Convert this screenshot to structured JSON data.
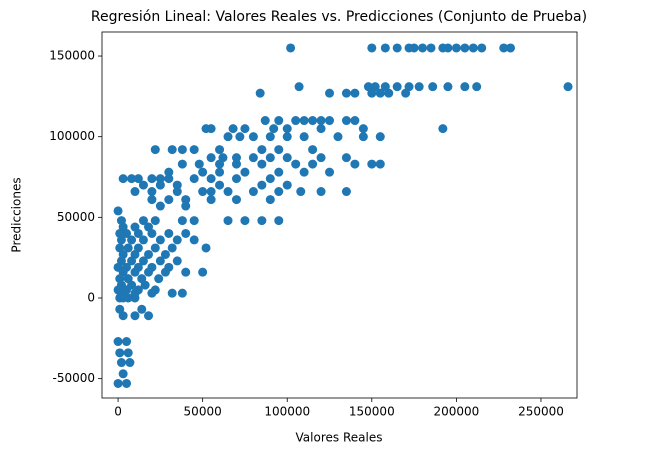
{
  "chart_data": {
    "type": "scatter",
    "title": "Regresión Lineal: Valores Reales vs. Predicciones (Conjunto de Prueba)",
    "xlabel": "Valores Reales",
    "ylabel": "Predicciones",
    "color": "#1f77b4",
    "xlim": [
      -9500,
      271300
    ],
    "ylim": [
      -62000,
      164900
    ],
    "xticks": [
      0,
      50000,
      100000,
      150000,
      200000,
      250000
    ],
    "yticks": [
      -50000,
      0,
      50000,
      100000,
      150000
    ],
    "grid": false,
    "x": [
      102000,
      150000,
      158000,
      165000,
      172000,
      175000,
      180000,
      185000,
      192000,
      195000,
      200000,
      205000,
      210000,
      215000,
      228000,
      232000,
      107000,
      148000,
      152000,
      158000,
      165000,
      172000,
      178000,
      186000,
      195000,
      205000,
      212000,
      266000,
      84000,
      125000,
      135000,
      140000,
      150000,
      155000,
      160000,
      170000,
      87000,
      95000,
      105000,
      110000,
      115000,
      120000,
      125000,
      135000,
      140000,
      52000,
      55000,
      68000,
      75000,
      92000,
      100000,
      120000,
      145000,
      192000,
      65000,
      72000,
      80000,
      90000,
      100000,
      110000,
      130000,
      145000,
      155000,
      22000,
      32000,
      38000,
      45000,
      60000,
      85000,
      95000,
      115000,
      55000,
      62000,
      70000,
      80000,
      90000,
      100000,
      120000,
      135000,
      38000,
      48000,
      60000,
      70000,
      85000,
      105000,
      115000,
      140000,
      150000,
      155000,
      30000,
      50000,
      60000,
      75000,
      95000,
      110000,
      125000,
      3000,
      8000,
      12000,
      20000,
      25000,
      30000,
      45000,
      55000,
      70000,
      90000,
      15000,
      25000,
      35000,
      60000,
      85000,
      100000,
      10000,
      20000,
      35000,
      50000,
      55000,
      65000,
      80000,
      95000,
      108000,
      120000,
      135000,
      20000,
      30000,
      40000,
      55000,
      70000,
      90000,
      25000,
      40000,
      0,
      2000,
      15000,
      22000,
      38000,
      45000,
      65000,
      75000,
      85000,
      95000,
      3000,
      10000,
      18000,
      1000,
      5000,
      12000,
      20000,
      30000,
      40000,
      2000,
      8000,
      15000,
      25000,
      35000,
      45000,
      1000,
      6000,
      12000,
      22000,
      32000,
      52000,
      3000,
      10000,
      18000,
      28000,
      2000,
      8000,
      15000,
      25000,
      35000,
      0,
      5000,
      12000,
      20000,
      30000,
      3000,
      10000,
      18000,
      28000,
      40000,
      50000,
      1000,
      6000,
      14000,
      24000,
      2000,
      8000,
      16000,
      0,
      5000,
      12000,
      22000,
      2000,
      10000,
      20000,
      32000,
      38000,
      1000,
      3000,
      6000,
      10000,
      1000,
      14000,
      3000,
      10000,
      18000,
      0,
      5000,
      1000,
      6000,
      2000,
      7000,
      3000,
      0,
      5000
    ],
    "values": [
      155000,
      155000,
      155000,
      155000,
      155000,
      155000,
      155000,
      155000,
      155000,
      155000,
      155000,
      155000,
      155000,
      155000,
      155000,
      155000,
      131000,
      131000,
      131000,
      131000,
      131000,
      131000,
      131000,
      131000,
      131000,
      131000,
      131000,
      131000,
      127000,
      127000,
      127000,
      127000,
      127000,
      127000,
      127000,
      127000,
      110000,
      110000,
      110000,
      110000,
      110000,
      110000,
      110000,
      110000,
      110000,
      105000,
      105000,
      105000,
      105000,
      105000,
      105000,
      105000,
      105000,
      105000,
      100000,
      100000,
      100000,
      100000,
      100000,
      100000,
      100000,
      100000,
      100000,
      92000,
      92000,
      92000,
      92000,
      92000,
      92000,
      92000,
      92000,
      87000,
      87000,
      87000,
      87000,
      87000,
      87000,
      87000,
      87000,
      83000,
      83000,
      83000,
      83000,
      83000,
      83000,
      83000,
      83000,
      83000,
      83000,
      78000,
      78000,
      78000,
      78000,
      78000,
      78000,
      78000,
      74000,
      74000,
      74000,
      74000,
      74000,
      74000,
      74000,
      74000,
      74000,
      74000,
      70000,
      70000,
      70000,
      70000,
      70000,
      70000,
      66000,
      66000,
      66000,
      66000,
      66000,
      66000,
      66000,
      66000,
      66000,
      66000,
      66000,
      61000,
      61000,
      61000,
      61000,
      61000,
      61000,
      57000,
      57000,
      54000,
      48000,
      48000,
      48000,
      48000,
      48000,
      48000,
      48000,
      48000,
      48000,
      44000,
      44000,
      44000,
      40000,
      40000,
      40000,
      40000,
      40000,
      40000,
      36000,
      36000,
      36000,
      36000,
      36000,
      36000,
      31000,
      31000,
      31000,
      31000,
      31000,
      31000,
      27000,
      27000,
      27000,
      27000,
      23000,
      23000,
      23000,
      23000,
      23000,
      19000,
      19000,
      19000,
      19000,
      19000,
      16000,
      16000,
      16000,
      16000,
      16000,
      16000,
      12000,
      12000,
      12000,
      12000,
      8000,
      8000,
      8000,
      5000,
      5000,
      5000,
      5000,
      3000,
      3000,
      3000,
      3000,
      3000,
      0,
      0,
      0,
      0,
      -7000,
      -7000,
      -11000,
      -11000,
      -11000,
      -27000,
      -27000,
      -34000,
      -34000,
      -40000,
      -40000,
      -47000,
      -53000,
      -53000
    ]
  }
}
